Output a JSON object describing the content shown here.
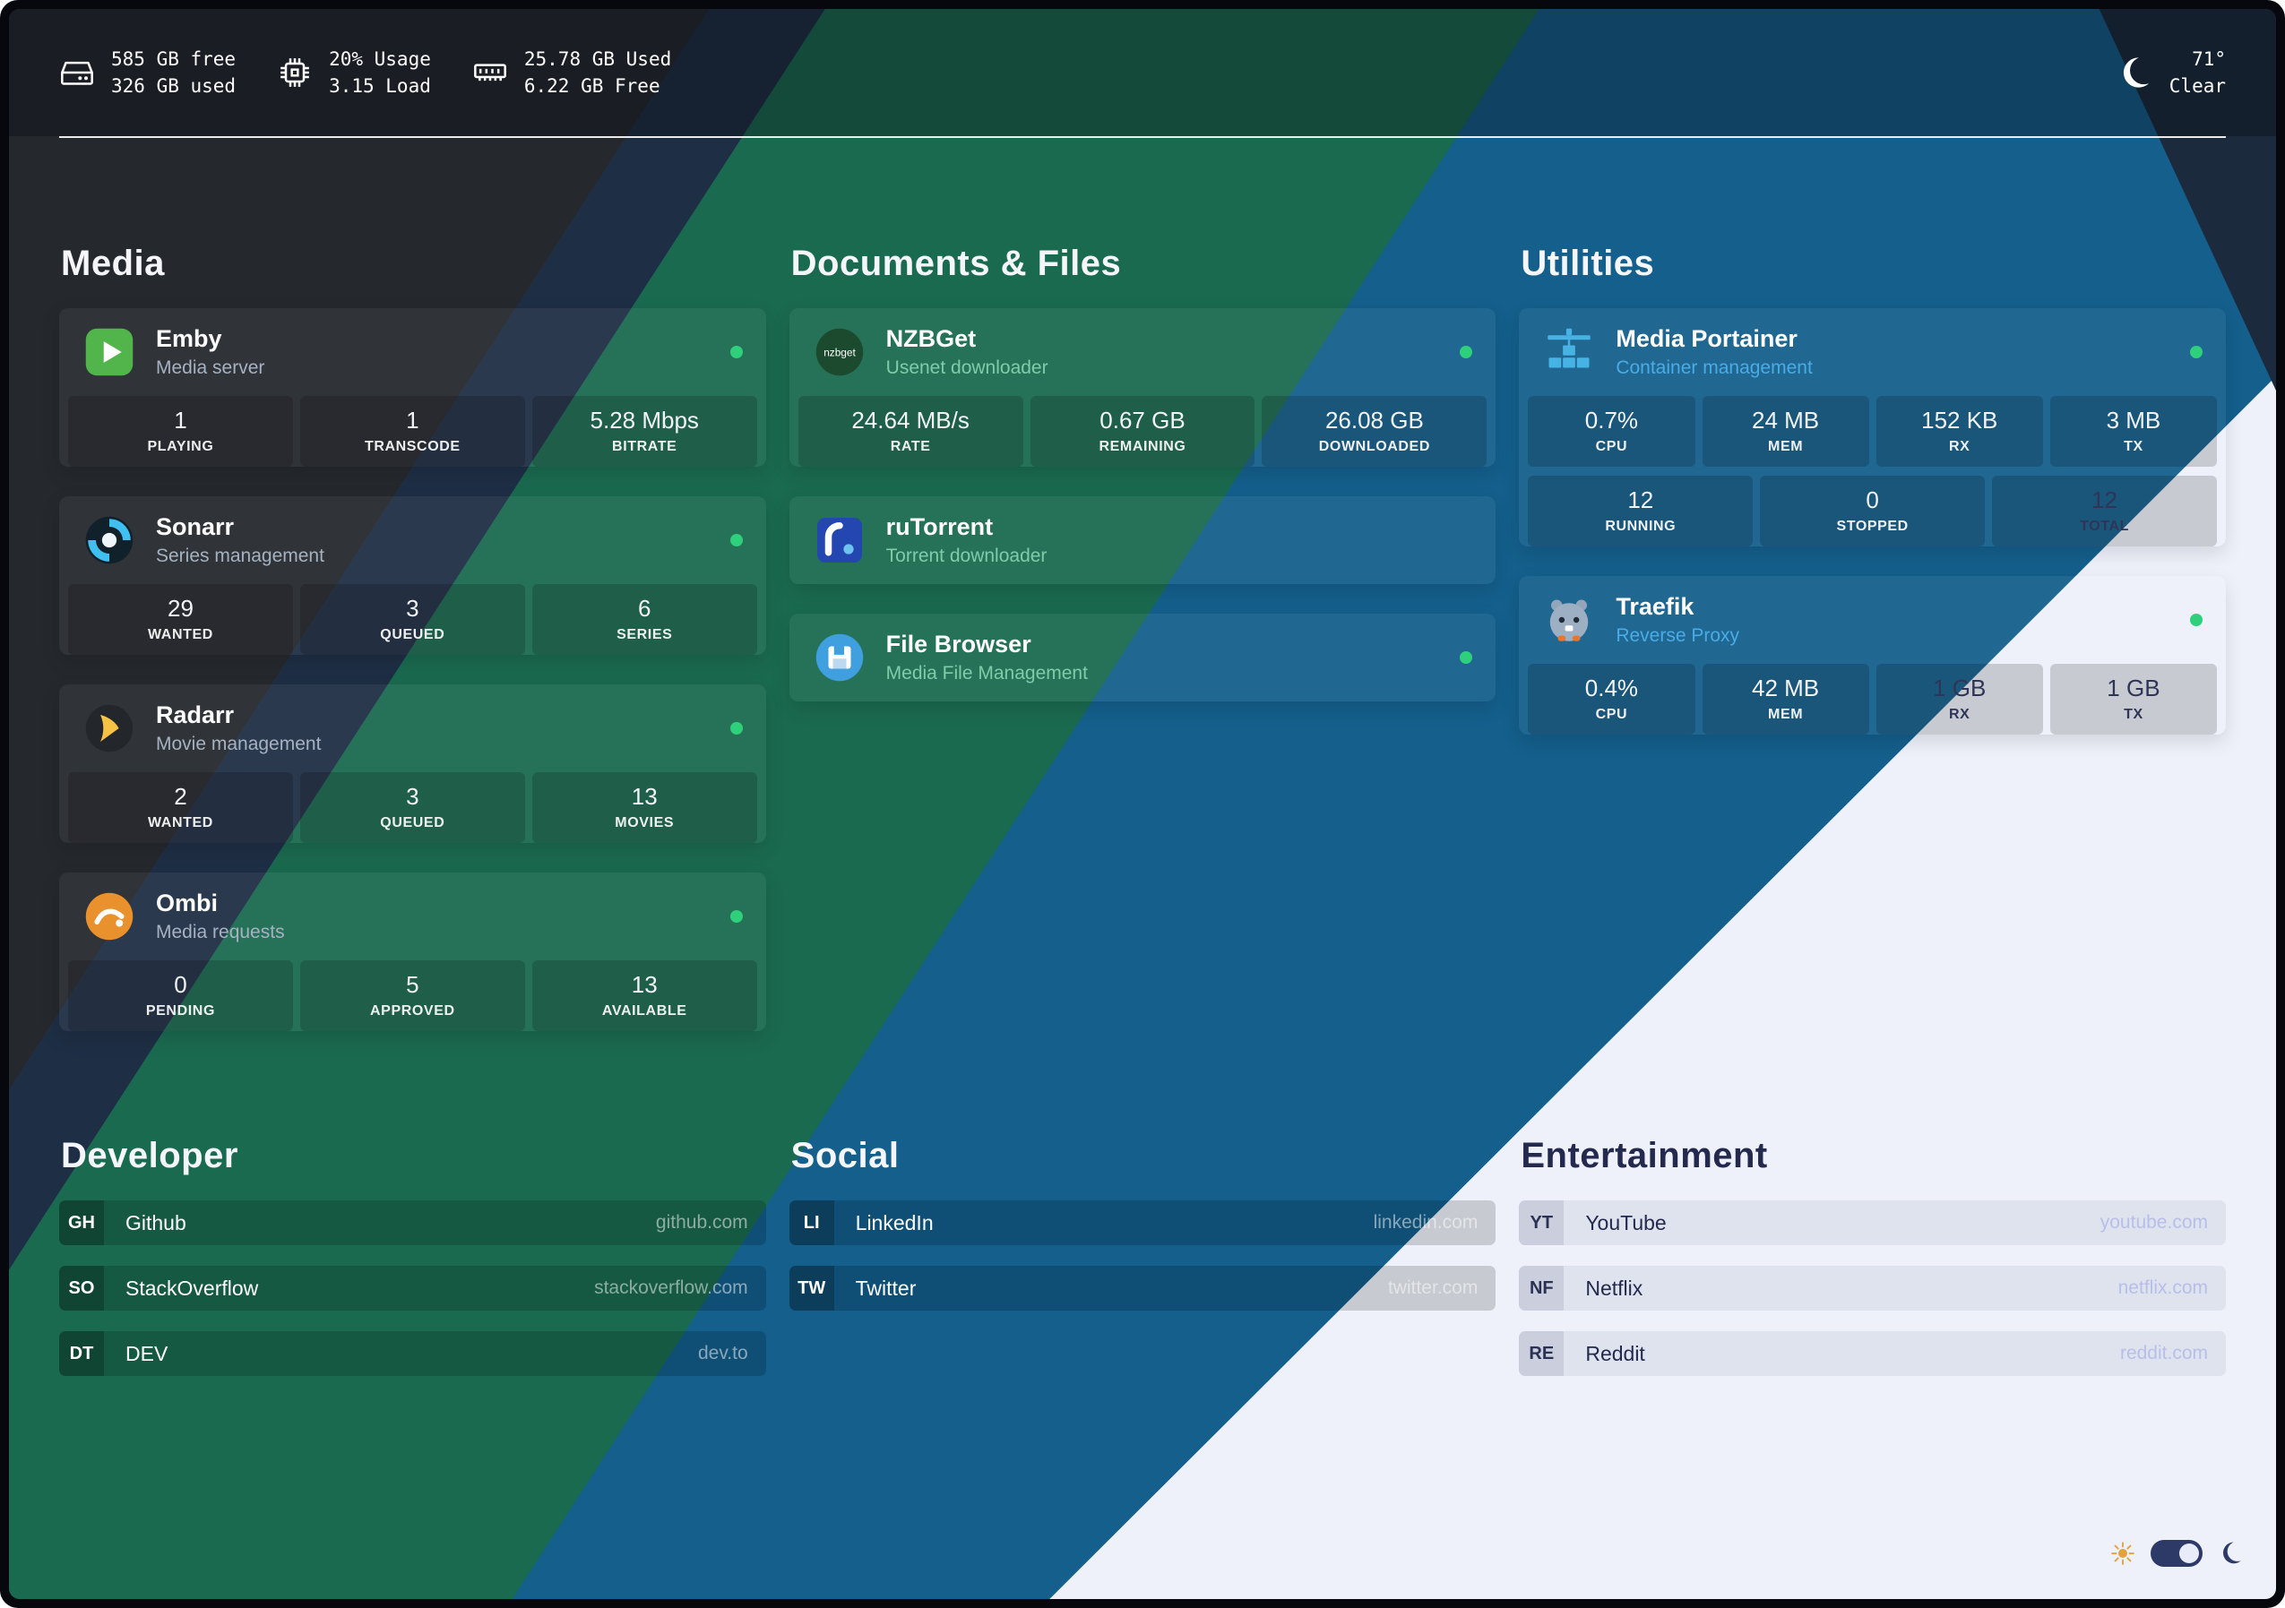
{
  "topbar": {
    "disk": {
      "icon": "hard-drive-icon",
      "line1": "585 GB free",
      "line2": "326 GB used"
    },
    "cpu": {
      "icon": "cpu-icon",
      "line1": "20% Usage",
      "line2": "3.15 Load"
    },
    "memory": {
      "icon": "memory-icon",
      "line1": "25.78 GB Used",
      "line2": "6.22 GB Free"
    },
    "weather": {
      "icon": "moon-clear-icon",
      "temperature": "71°",
      "condition": "Clear"
    }
  },
  "service_sections": [
    {
      "title": "Media",
      "cards": [
        {
          "name": "Emby",
          "subtitle": "Media server",
          "icon": "emby",
          "online": true,
          "stat_rows": [
            [
              {
                "value": "1",
                "label": "PLAYING"
              },
              {
                "value": "1",
                "label": "TRANSCODE"
              },
              {
                "value": "5.28 Mbps",
                "label": "BITRATE"
              }
            ]
          ]
        },
        {
          "name": "Sonarr",
          "subtitle": "Series management",
          "icon": "sonarr",
          "online": true,
          "stat_rows": [
            [
              {
                "value": "29",
                "label": "WANTED"
              },
              {
                "value": "3",
                "label": "QUEUED"
              },
              {
                "value": "6",
                "label": "SERIES"
              }
            ]
          ]
        },
        {
          "name": "Radarr",
          "subtitle": "Movie management",
          "icon": "radarr",
          "online": true,
          "stat_rows": [
            [
              {
                "value": "2",
                "label": "WANTED"
              },
              {
                "value": "3",
                "label": "QUEUED"
              },
              {
                "value": "13",
                "label": "MOVIES"
              }
            ]
          ]
        },
        {
          "name": "Ombi",
          "subtitle": "Media requests",
          "icon": "ombi",
          "online": true,
          "stat_rows": [
            [
              {
                "value": "0",
                "label": "PENDING"
              },
              {
                "value": "5",
                "label": "APPROVED"
              },
              {
                "value": "13",
                "label": "AVAILABLE"
              }
            ]
          ]
        }
      ]
    },
    {
      "title": "Documents & Files",
      "cards": [
        {
          "name": "NZBGet",
          "subtitle": "Usenet downloader",
          "icon": "nzbget",
          "online": true,
          "stat_rows": [
            [
              {
                "value": "24.64 MB/s",
                "label": "RATE"
              },
              {
                "value": "0.67 GB",
                "label": "REMAINING"
              },
              {
                "value": "26.08 GB",
                "label": "DOWNLOADED"
              }
            ]
          ]
        },
        {
          "name": "ruTorrent",
          "subtitle": "Torrent downloader",
          "icon": "rutorrent",
          "online": false
        },
        {
          "name": "File Browser",
          "subtitle": "Media File Management",
          "icon": "filebrowser",
          "online": true
        }
      ]
    },
    {
      "title": "Utilities",
      "cards": [
        {
          "name": "Media Portainer",
          "subtitle": "Container management",
          "icon": "portainer",
          "online": true,
          "stat_rows": [
            [
              {
                "value": "0.7%",
                "label": "CPU"
              },
              {
                "value": "24 MB",
                "label": "MEM"
              },
              {
                "value": "152 KB",
                "label": "RX"
              },
              {
                "value": "3 MB",
                "label": "TX"
              }
            ],
            [
              {
                "value": "12",
                "label": "RUNNING"
              },
              {
                "value": "0",
                "label": "STOPPED"
              },
              {
                "value": "12",
                "label": "TOTAL",
                "dark_text": true
              }
            ]
          ]
        },
        {
          "name": "Traefik",
          "subtitle": "Reverse Proxy",
          "icon": "traefik",
          "online": true,
          "stat_rows": [
            [
              {
                "value": "0.4%",
                "label": "CPU"
              },
              {
                "value": "42 MB",
                "label": "MEM"
              },
              {
                "value": "1 GB",
                "label": "RX",
                "dark_text": true
              },
              {
                "value": "1 GB",
                "label": "TX",
                "dark_text": true
              }
            ]
          ]
        }
      ]
    }
  ],
  "link_sections": [
    {
      "title": "Developer",
      "theme": "dark",
      "links": [
        {
          "abbr": "GH",
          "name": "Github",
          "url": "github.com"
        },
        {
          "abbr": "SO",
          "name": "StackOverflow",
          "url": "stackoverflow.com"
        },
        {
          "abbr": "DT",
          "name": "DEV",
          "url": "dev.to"
        }
      ]
    },
    {
      "title": "Social",
      "theme": "dark",
      "links": [
        {
          "abbr": "LI",
          "name": "LinkedIn",
          "url": "linkedin.com"
        },
        {
          "abbr": "TW",
          "name": "Twitter",
          "url": "twitter.com"
        }
      ]
    },
    {
      "title": "Entertainment",
      "theme": "light",
      "links": [
        {
          "abbr": "YT",
          "name": "YouTube",
          "url": "youtube.com"
        },
        {
          "abbr": "NF",
          "name": "Netflix",
          "url": "netflix.com"
        },
        {
          "abbr": "RE",
          "name": "Reddit",
          "url": "reddit.com"
        }
      ]
    }
  ],
  "theme_switcher": {
    "sun_icon": "sun-icon",
    "moon_icon": "moon-icon",
    "toggle_state": "on"
  },
  "status": {
    "online_color": "#2fd07c"
  },
  "colors": {
    "band_charcoal": "#25282d",
    "band_navy": "#1e2e44",
    "band_green": "#1a6a4f",
    "band_blue": "#145f8c",
    "band_white": "#eef1fa",
    "band_corner_navy": "#1c2a3e"
  }
}
